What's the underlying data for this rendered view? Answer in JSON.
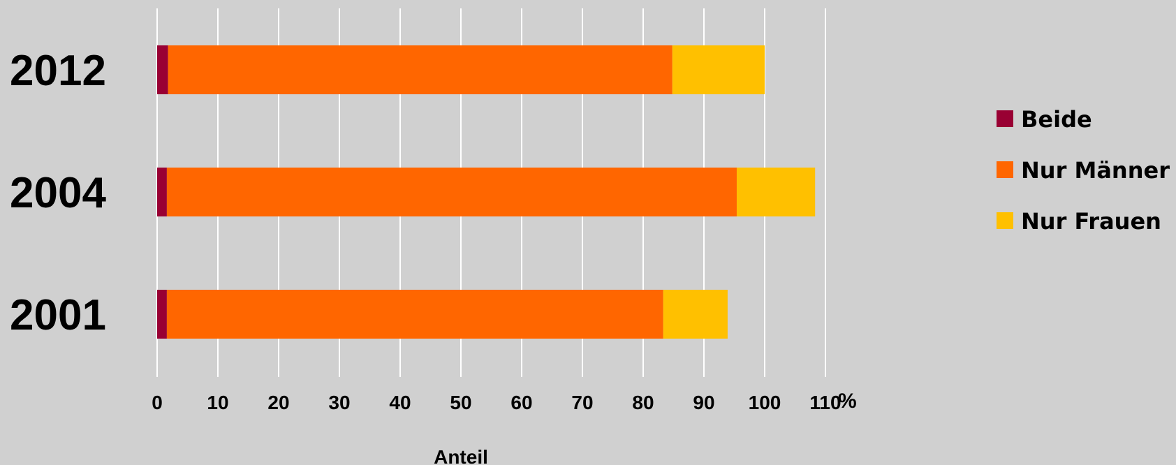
{
  "chart_data": {
    "type": "bar",
    "orientation": "horizontal",
    "stacked": true,
    "categories": [
      "2012",
      "2004",
      "2001"
    ],
    "series": [
      {
        "name": "Beide",
        "color": "#990033",
        "values": [
          1.8,
          1.6,
          1.6
        ]
      },
      {
        "name": "Nur Männer",
        "color": "#ff6600",
        "values": [
          83.0,
          93.8,
          81.7
        ]
      },
      {
        "name": "Nur Frauen",
        "color": "#ffc000",
        "values": [
          15.2,
          12.9,
          10.6
        ]
      }
    ],
    "xlabel": "Anteil",
    "x_unit_label": "%",
    "xlim": [
      0,
      110
    ],
    "xticks": [
      "0",
      "10",
      "20",
      "30",
      "40",
      "50",
      "60",
      "70",
      "80",
      "90",
      "100",
      "110"
    ],
    "grid": true,
    "legend_position": "right",
    "colors": {
      "background": "#d0d0d0",
      "gridline": "#ffffff"
    }
  }
}
